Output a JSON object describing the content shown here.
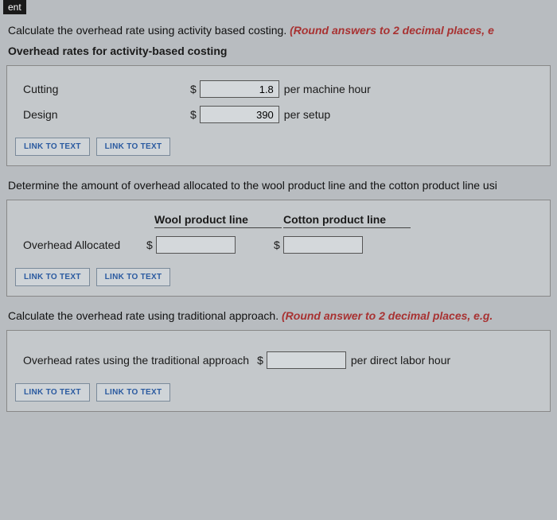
{
  "topFragment": "ent",
  "section1": {
    "question_prefix": "Calculate the overhead rate using activity based costing. ",
    "question_red": "(Round answers to 2 decimal places, e",
    "subheader": "Overhead rates for activity-based costing",
    "rows": [
      {
        "label": "Cutting",
        "value": "1.8",
        "unit": "per machine hour"
      },
      {
        "label": "Design",
        "value": "390",
        "unit": "per setup",
        "cursor": true
      }
    ]
  },
  "links": {
    "link1": "LINK TO TEXT",
    "link2": "LINK TO TEXT"
  },
  "section2": {
    "question": "Determine the amount of overhead allocated to the wool product line and the cotton product line usi",
    "col1": "Wool product line",
    "col2": "Cotton product line",
    "rowLabel": "Overhead Allocated"
  },
  "section3": {
    "question_prefix": "Calculate the overhead rate using traditional approach. ",
    "question_red": "(Round answer to 2 decimal places, e.g.",
    "label": "Overhead rates using the traditional approach",
    "unit": "per direct labor hour"
  },
  "dollar": "$"
}
